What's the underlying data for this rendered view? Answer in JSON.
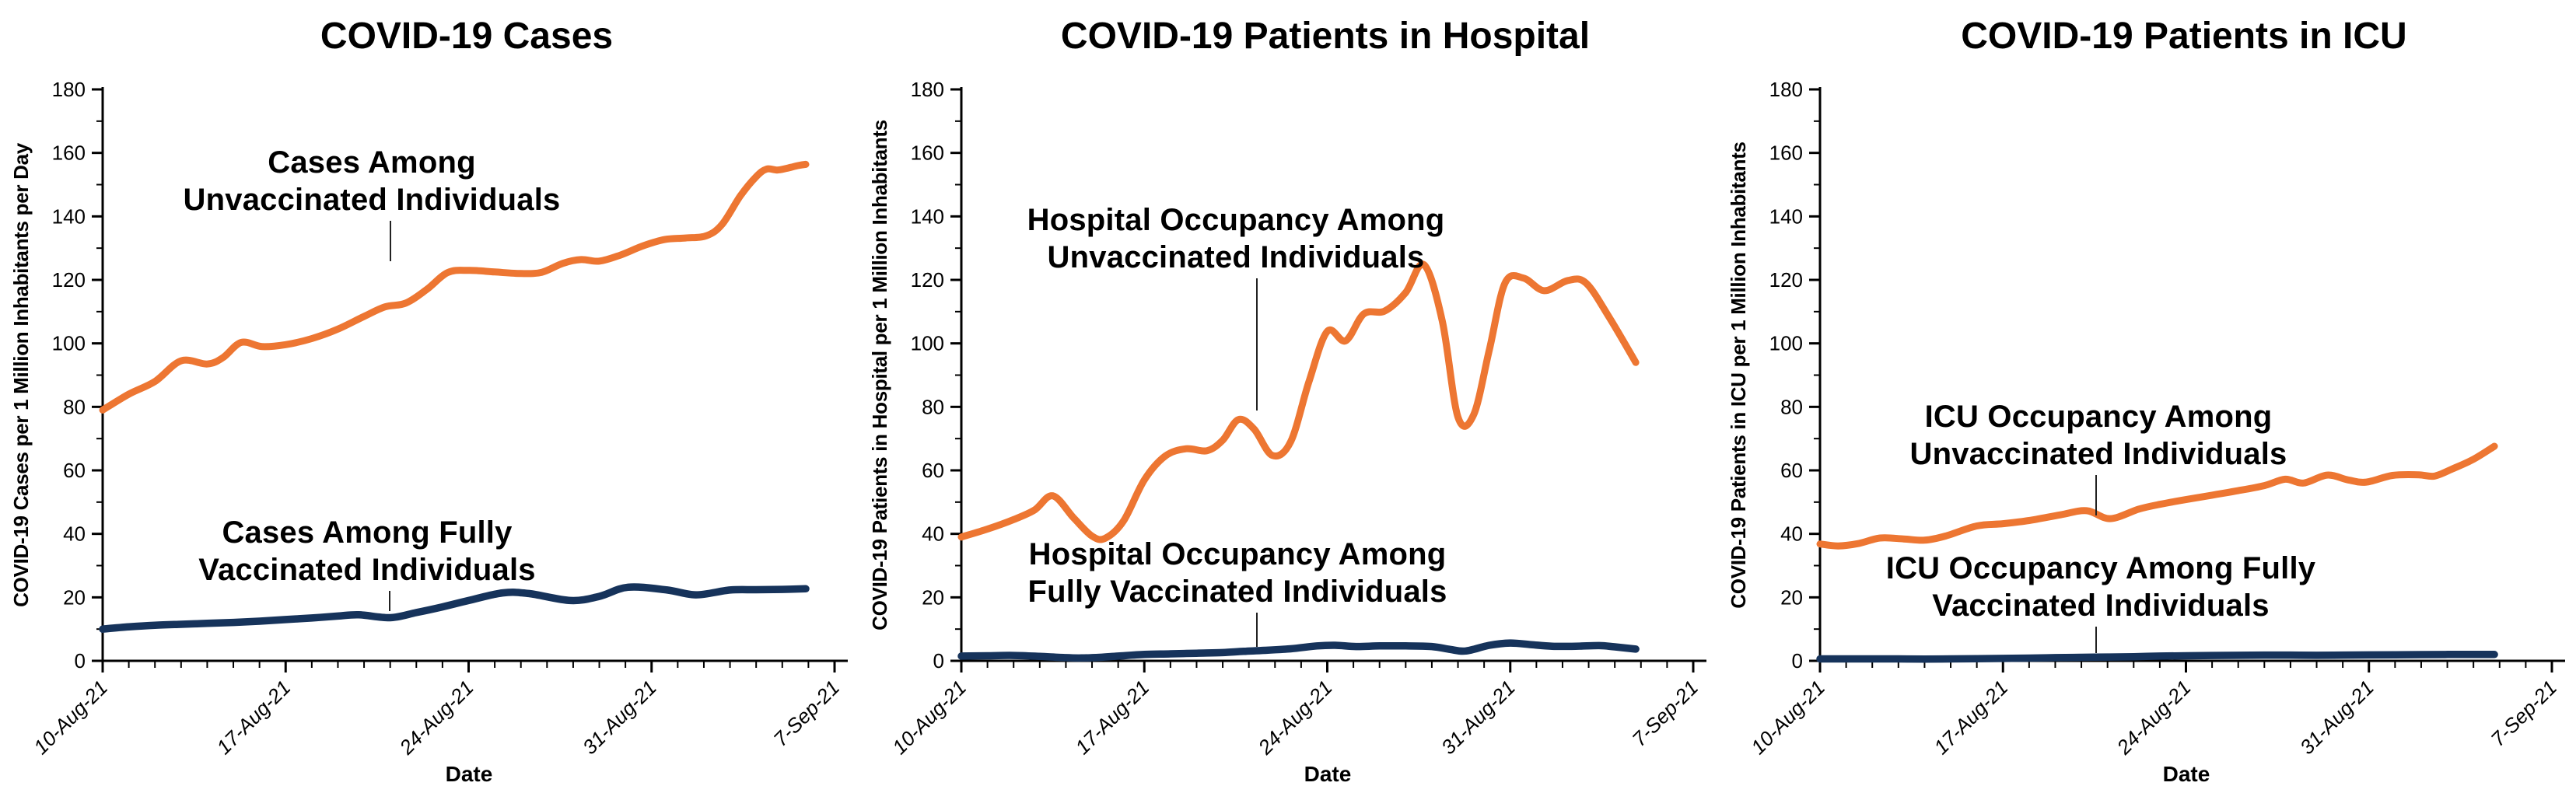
{
  "page": {
    "background": "#ffffff"
  },
  "colors": {
    "unvaccinated_line": "#ED7632",
    "vaccinated_line": "#16335B",
    "axis": "#000000",
    "leader": "#222222",
    "text": "#000000"
  },
  "x_axis": {
    "label": "Date",
    "tick_labels": [
      "10-Aug-21",
      "17-Aug-21",
      "24-Aug-21",
      "31-Aug-21",
      "7-Sep-21"
    ],
    "major_tick_days": [
      0,
      7,
      14,
      21,
      28
    ],
    "minor_tick_every_days": 1,
    "domain_days": 28
  },
  "y_axis": {
    "min": 0,
    "max": 180,
    "major_step": 20,
    "minor_step": 10,
    "tick_labels": [
      "0",
      "20",
      "40",
      "60",
      "80",
      "100",
      "120",
      "140",
      "160",
      "180"
    ]
  },
  "chart_data": [
    {
      "type": "line",
      "title": "COVID-19 Cases",
      "xlabel": "Date",
      "ylabel": "COVID-19 Cases per 1 Million Inhabitants per Day",
      "ylim": [
        0,
        180
      ],
      "x_ticks": [
        "10-Aug-21",
        "17-Aug-21",
        "24-Aug-21",
        "31-Aug-21",
        "7-Sep-21"
      ],
      "grid": false,
      "legend": "inline annotations with leader lines",
      "series": [
        {
          "name": "Cases Among Unvaccinated Individuals",
          "color_key": "unvaccinated_line",
          "points": [
            [
              0,
              79
            ],
            [
              1,
              84
            ],
            [
              2,
              88
            ],
            [
              3,
              94.5
            ],
            [
              4,
              93.5
            ],
            [
              4.6,
              95.5
            ],
            [
              5.3,
              100.3
            ],
            [
              6.1,
              99
            ],
            [
              7,
              99.6
            ],
            [
              8,
              101.5
            ],
            [
              9,
              104.5
            ],
            [
              10,
              108.5
            ],
            [
              10.8,
              111.5
            ],
            [
              11.6,
              112.7
            ],
            [
              12.4,
              117
            ],
            [
              13.2,
              122.3
            ],
            [
              14,
              123
            ],
            [
              15,
              122.5
            ],
            [
              16,
              122
            ],
            [
              16.8,
              122.4
            ],
            [
              17.6,
              125.2
            ],
            [
              18.3,
              126.4
            ],
            [
              19,
              125.9
            ],
            [
              19.8,
              127.8
            ],
            [
              20.7,
              130.8
            ],
            [
              21.5,
              132.7
            ],
            [
              22.3,
              133.2
            ],
            [
              23.1,
              133.9
            ],
            [
              23.7,
              137.5
            ],
            [
              24.4,
              146.5
            ],
            [
              25,
              152.5
            ],
            [
              25.4,
              154.9
            ],
            [
              25.8,
              154.6
            ],
            [
              26.2,
              155.2
            ],
            [
              26.6,
              156
            ],
            [
              26.9,
              156.4
            ]
          ]
        },
        {
          "name": "Cases Among Fully Vaccinated Individuals",
          "color_key": "vaccinated_line",
          "points": [
            [
              0,
              10
            ],
            [
              1,
              10.7
            ],
            [
              2,
              11.2
            ],
            [
              3,
              11.5
            ],
            [
              4,
              11.8
            ],
            [
              5,
              12.1
            ],
            [
              6,
              12.5
            ],
            [
              7,
              13
            ],
            [
              8,
              13.5
            ],
            [
              9,
              14.1
            ],
            [
              9.8,
              14.5
            ],
            [
              11,
              13.6
            ],
            [
              12,
              15.2
            ],
            [
              13,
              17
            ],
            [
              14,
              19
            ],
            [
              15.3,
              21.4
            ],
            [
              16.3,
              21.2
            ],
            [
              17.9,
              19
            ],
            [
              19,
              20.3
            ],
            [
              20.1,
              23.2
            ],
            [
              21.6,
              22.3
            ],
            [
              22.7,
              20.8
            ],
            [
              24,
              22.3
            ],
            [
              25,
              22.4
            ],
            [
              26,
              22.5
            ],
            [
              26.9,
              22.7
            ]
          ]
        }
      ],
      "annotations": [
        {
          "lines": [
            "Cases Among",
            "Unvaccinated Individuals"
          ],
          "cx": 478,
          "baseline1": 222,
          "baseline2": 270,
          "leader": {
            "x": 502,
            "y1": 284,
            "y2": 336
          }
        },
        {
          "lines": [
            "Cases Among Fully",
            "Vaccinated Individuals"
          ],
          "cx": 472,
          "baseline1": 698,
          "baseline2": 746,
          "leader": {
            "x": 501,
            "y1": 760,
            "y2": 786
          }
        }
      ]
    },
    {
      "type": "line",
      "title": "COVID-19 Patients in Hospital",
      "xlabel": "Date",
      "ylabel": "COVID-19 Patients in Hospital per 1 Million Inhabitants",
      "ylim": [
        0,
        180
      ],
      "x_ticks": [
        "10-Aug-21",
        "17-Aug-21",
        "24-Aug-21",
        "31-Aug-21",
        "7-Sep-21"
      ],
      "grid": false,
      "legend": "inline annotations with leader lines",
      "series": [
        {
          "name": "Hospital Occupancy Among Unvaccinated Individuals",
          "color_key": "unvaccinated_line",
          "points": [
            [
              0,
              39
            ],
            [
              1,
              41.5
            ],
            [
              2,
              44.5
            ],
            [
              2.8,
              47.5
            ],
            [
              3.5,
              52
            ],
            [
              4.3,
              45
            ],
            [
              5,
              39.3
            ],
            [
              5.5,
              38.6
            ],
            [
              6.2,
              44
            ],
            [
              7,
              57
            ],
            [
              7.8,
              64.5
            ],
            [
              8.6,
              66.8
            ],
            [
              9.4,
              66.2
            ],
            [
              10,
              69.5
            ],
            [
              10.6,
              76
            ],
            [
              11.2,
              73
            ],
            [
              11.9,
              64.7
            ],
            [
              12.6,
              69
            ],
            [
              13.3,
              88
            ],
            [
              14,
              103.8
            ],
            [
              14.7,
              100.8
            ],
            [
              15.4,
              109.3
            ],
            [
              16.2,
              110.2
            ],
            [
              17,
              116
            ],
            [
              17.7,
              124.8
            ],
            [
              18.4,
              107
            ],
            [
              19,
              76.8
            ],
            [
              19.6,
              77.5
            ],
            [
              20.2,
              98
            ],
            [
              20.8,
              119
            ],
            [
              21.5,
              120.6
            ],
            [
              22.3,
              116.6
            ],
            [
              23.2,
              119.8
            ],
            [
              23.9,
              119
            ],
            [
              24.8,
              108
            ],
            [
              25.8,
              94
            ]
          ]
        },
        {
          "name": "Hospital Occupancy  Among Fully Vaccinated Individuals",
          "color_key": "vaccinated_line",
          "points": [
            [
              0,
              1.5
            ],
            [
              1,
              1.6
            ],
            [
              2,
              1.7
            ],
            [
              3,
              1.4
            ],
            [
              4,
              1
            ],
            [
              4.6,
              0.9
            ],
            [
              5.3,
              1.1
            ],
            [
              6,
              1.5
            ],
            [
              7,
              2
            ],
            [
              8,
              2.2
            ],
            [
              9,
              2.4
            ],
            [
              10,
              2.6
            ],
            [
              10.8,
              3
            ],
            [
              11.6,
              3.3
            ],
            [
              12.6,
              3.8
            ],
            [
              13.6,
              4.7
            ],
            [
              14.3,
              4.9
            ],
            [
              15.1,
              4.5
            ],
            [
              16,
              4.7
            ],
            [
              17,
              4.7
            ],
            [
              18,
              4.5
            ],
            [
              18.7,
              3.6
            ],
            [
              19.3,
              3.1
            ],
            [
              20.2,
              4.9
            ],
            [
              21,
              5.6
            ],
            [
              21.8,
              5.1
            ],
            [
              22.6,
              4.6
            ],
            [
              23.5,
              4.6
            ],
            [
              24.4,
              4.8
            ],
            [
              25,
              4.4
            ],
            [
              25.8,
              3.7
            ]
          ]
        }
      ],
      "annotations": [
        {
          "lines": [
            "Hospital Occupancy Among",
            "Unvaccinated Individuals"
          ],
          "cx": 485,
          "baseline1": 296,
          "baseline2": 344,
          "leader": {
            "x": 512,
            "y1": 358,
            "y2": 528
          }
        },
        {
          "lines": [
            "Hospital Occupancy  Among",
            "Fully Vaccinated Individuals"
          ],
          "cx": 487,
          "baseline1": 726,
          "baseline2": 774,
          "leader": {
            "x": 512,
            "y1": 788,
            "y2": 832
          }
        }
      ]
    },
    {
      "type": "line",
      "title": "COVID-19 Patients in ICU",
      "xlabel": "Date",
      "ylabel": "COVID-19 Patients in ICU  per 1 Million Inhabitants",
      "ylim": [
        0,
        180
      ],
      "x_ticks": [
        "10-Aug-21",
        "17-Aug-21",
        "24-Aug-21",
        "31-Aug-21",
        "7-Sep-21"
      ],
      "grid": false,
      "legend": "inline annotations with leader lines",
      "series": [
        {
          "name": "ICU Occupancy Among Unvaccinated Individuals",
          "color_key": "unvaccinated_line",
          "points": [
            [
              0,
              36.8
            ],
            [
              0.7,
              36.2
            ],
            [
              1.5,
              37
            ],
            [
              2.3,
              38.7
            ],
            [
              3.2,
              38.4
            ],
            [
              4,
              38
            ],
            [
              4.8,
              39.3
            ],
            [
              6,
              42.5
            ],
            [
              7,
              43.2
            ],
            [
              8,
              44.2
            ],
            [
              9.2,
              46
            ],
            [
              10.2,
              47.3
            ],
            [
              11.1,
              44.8
            ],
            [
              12.2,
              47.8
            ],
            [
              13,
              49.3
            ],
            [
              14,
              50.8
            ],
            [
              15,
              52.2
            ],
            [
              16,
              53.6
            ],
            [
              17,
              55.2
            ],
            [
              17.8,
              57.2
            ],
            [
              18.5,
              56
            ],
            [
              19.4,
              58.5
            ],
            [
              20.2,
              57
            ],
            [
              20.9,
              56.3
            ],
            [
              21.9,
              58.4
            ],
            [
              22.9,
              58.6
            ],
            [
              23.5,
              58.2
            ],
            [
              24.2,
              60.5
            ],
            [
              25,
              63.5
            ],
            [
              25.8,
              67.6
            ]
          ]
        },
        {
          "name": "ICU Occupancy Among Fully Vaccinated Individuals",
          "color_key": "vaccinated_line",
          "points": [
            [
              0,
              0.6
            ],
            [
              1,
              0.6
            ],
            [
              2,
              0.6
            ],
            [
              3,
              0.6
            ],
            [
              4,
              0.55
            ],
            [
              5,
              0.6
            ],
            [
              6,
              0.65
            ],
            [
              7,
              0.75
            ],
            [
              8,
              0.85
            ],
            [
              9,
              1
            ],
            [
              10,
              1.1
            ],
            [
              11,
              1.2
            ],
            [
              12,
              1.3
            ],
            [
              13,
              1.5
            ],
            [
              14,
              1.6
            ],
            [
              15,
              1.7
            ],
            [
              16,
              1.75
            ],
            [
              17,
              1.8
            ],
            [
              18,
              1.8
            ],
            [
              19,
              1.75
            ],
            [
              20,
              1.8
            ],
            [
              21,
              1.85
            ],
            [
              22,
              1.9
            ],
            [
              23,
              1.95
            ],
            [
              24,
              2
            ],
            [
              25,
              2
            ],
            [
              25.8,
              2
            ]
          ]
        }
      ],
      "annotations": [
        {
          "lines": [
            "ICU Occupancy Among",
            "Unvaccinated Individuals"
          ],
          "cx": 490,
          "baseline1": 549,
          "baseline2": 597,
          "leader": {
            "x": 487,
            "y1": 611,
            "y2": 663
          }
        },
        {
          "lines": [
            "ICU Occupancy Among Fully",
            "Vaccinated Individuals"
          ],
          "cx": 493,
          "baseline1": 744,
          "baseline2": 792,
          "leader": {
            "x": 487,
            "y1": 806,
            "y2": 840
          }
        }
      ]
    }
  ]
}
